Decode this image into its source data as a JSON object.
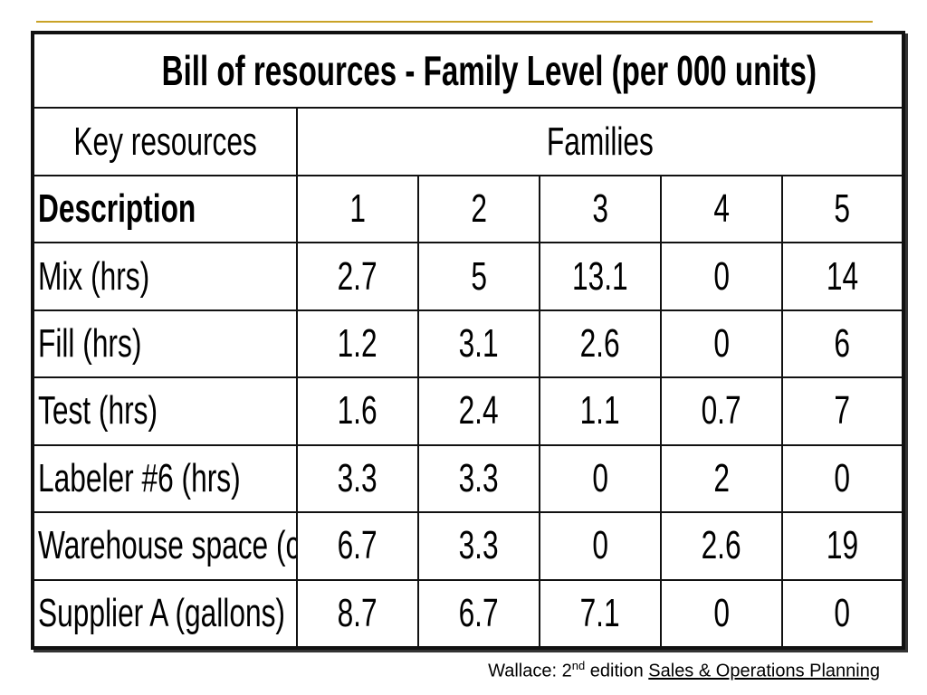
{
  "table": {
    "title": "Bill of resources - Family Level (per 000 units)",
    "key_resources_label": "Key resources",
    "families_label": "Families",
    "description_label": "Description",
    "family_numbers": [
      "1",
      "2",
      "3",
      "4",
      "5"
    ],
    "rows": [
      {
        "resource": "Mix (hrs)",
        "values": [
          "2.7",
          "5",
          "13.1",
          "0",
          "14"
        ]
      },
      {
        "resource": "Fill (hrs)",
        "values": [
          "1.2",
          "3.1",
          "2.6",
          "0",
          "6"
        ]
      },
      {
        "resource": "Test (hrs)",
        "values": [
          "1.6",
          "2.4",
          "1.1",
          "0.7",
          "7"
        ]
      },
      {
        "resource": "Labeler #6 (hrs)",
        "values": [
          "3.3",
          "3.3",
          "0",
          "2",
          "0"
        ]
      },
      {
        "resource": "Warehouse space (cube)",
        "values": [
          "6.7",
          "3.3",
          "0",
          "2.6",
          "19"
        ]
      },
      {
        "resource": "Supplier A (gallons)",
        "values": [
          "8.7",
          "6.7",
          "7.1",
          "0",
          "0"
        ]
      }
    ]
  },
  "citation": {
    "prefix": "Wallace: 2",
    "superscript": "nd",
    "middle": " edition ",
    "book_title": "Sales & Operations Planning"
  },
  "colors": {
    "accent_rule": "#c9a227",
    "grid": "#111111"
  }
}
